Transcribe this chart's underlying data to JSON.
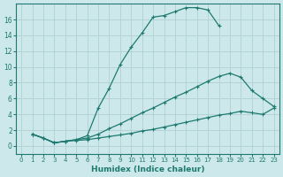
{
  "xlabel": "Humidex (Indice chaleur)",
  "bg_color": "#cce8ea",
  "grid_color": "#b0d0d3",
  "line_color": "#1e7a70",
  "xlim": [
    -0.5,
    23.5
  ],
  "ylim": [
    -1,
    18
  ],
  "yticks": [
    0,
    2,
    4,
    6,
    8,
    10,
    12,
    14,
    16
  ],
  "xticks": [
    0,
    1,
    2,
    3,
    4,
    5,
    6,
    7,
    8,
    9,
    10,
    11,
    12,
    13,
    14,
    15,
    16,
    17,
    18,
    19,
    20,
    21,
    22,
    23
  ],
  "line1_x": [
    1,
    2,
    3,
    4,
    5,
    6,
    7,
    8,
    9,
    10,
    11,
    12,
    13,
    14,
    15,
    16,
    17,
    18
  ],
  "line1_y": [
    1.5,
    1.0,
    0.4,
    0.6,
    0.8,
    1.3,
    4.8,
    7.3,
    10.3,
    12.5,
    14.3,
    16.3,
    16.5,
    17.0,
    17.5,
    17.5,
    17.2,
    15.2
  ],
  "line2_x": [
    1,
    2,
    3,
    4,
    5,
    6,
    7,
    8,
    9,
    10,
    11,
    12,
    13,
    14,
    15,
    16,
    17,
    18,
    19,
    20,
    21,
    22,
    23
  ],
  "line2_y": [
    1.5,
    1.0,
    0.4,
    0.6,
    0.8,
    1.0,
    1.5,
    2.2,
    2.8,
    3.5,
    4.2,
    4.8,
    5.5,
    6.2,
    6.8,
    7.5,
    8.2,
    8.8,
    9.2,
    8.7,
    7.0,
    6.0,
    5.0
  ],
  "line3_x": [
    1,
    2,
    3,
    4,
    5,
    6,
    7,
    8,
    9,
    10,
    11,
    12,
    13,
    14,
    15,
    16,
    17,
    18,
    19,
    20,
    21,
    22,
    23
  ],
  "line3_y": [
    1.5,
    1.0,
    0.4,
    0.6,
    0.7,
    0.8,
    1.0,
    1.2,
    1.4,
    1.6,
    1.9,
    2.1,
    2.4,
    2.7,
    3.0,
    3.3,
    3.6,
    3.9,
    4.1,
    4.4,
    4.2,
    4.0,
    4.8
  ]
}
